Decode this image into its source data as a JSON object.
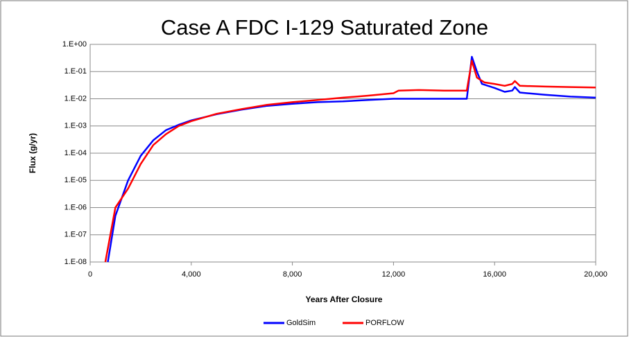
{
  "chart_data": {
    "type": "line",
    "title": "Case A FDC I-129 Saturated Zone",
    "x_label": "Years After Closure",
    "y_label": "Flux (g/yr)",
    "log_y": true,
    "grid": true,
    "legend": "bottom",
    "xlim": [
      0,
      20000
    ],
    "xticks": [
      0,
      {
        "value": 4000,
        "label": "4,000"
      },
      {
        "value": 8000,
        "label": "8,000"
      },
      {
        "value": 12000,
        "label": "12,000"
      },
      {
        "value": 16000,
        "label": "16,000"
      },
      {
        "value": 20000,
        "label": "20,000"
      }
    ],
    "ylim": [
      1e-08,
      1
    ],
    "yticks": [
      {
        "value": 1e-08,
        "label": "1.E-08"
      },
      {
        "value": 1e-07,
        "label": "1.E-07"
      },
      {
        "value": 1e-06,
        "label": "1.E-06"
      },
      {
        "value": 1e-05,
        "label": "1.E-05"
      },
      {
        "value": 0.0001,
        "label": "1.E-04"
      },
      {
        "value": 0.001,
        "label": "1.E-03"
      },
      {
        "value": 0.01,
        "label": "1.E-02"
      },
      {
        "value": 0.1,
        "label": "1.E-01"
      },
      {
        "value": 1,
        "label": "1.E+00"
      }
    ],
    "series": [
      {
        "name": "GoldSim",
        "color": "#0000ff",
        "x": [
          700,
          1000,
          1500,
          2000,
          2500,
          3000,
          3500,
          4000,
          5000,
          6000,
          7000,
          8000,
          9000,
          10000,
          11000,
          12000,
          13000,
          14000,
          14900,
          15100,
          15300,
          15500,
          16000,
          16400,
          16700,
          16800,
          17000,
          18000,
          19000,
          20000
        ],
        "values": [
          1e-08,
          5e-07,
          1e-05,
          8e-05,
          0.0003,
          0.0007,
          0.0011,
          0.0016,
          0.0027,
          0.004,
          0.0055,
          0.0065,
          0.0075,
          0.008,
          0.009,
          0.01,
          0.01,
          0.01,
          0.01,
          0.35,
          0.1,
          0.035,
          0.025,
          0.018,
          0.02,
          0.027,
          0.017,
          0.014,
          0.012,
          0.011
        ]
      },
      {
        "name": "PORFLOW",
        "color": "#ff0000",
        "x": [
          600,
          1000,
          1500,
          2000,
          2500,
          3000,
          3500,
          4000,
          5000,
          6000,
          7000,
          8000,
          9000,
          10000,
          11000,
          12000,
          12200,
          13000,
          14000,
          14900,
          15100,
          15300,
          15600,
          16000,
          16400,
          16700,
          16800,
          17000,
          18000,
          19000,
          20000
        ],
        "values": [
          1e-08,
          1e-06,
          5e-06,
          4e-05,
          0.0002,
          0.0005,
          0.001,
          0.0015,
          0.0028,
          0.0042,
          0.006,
          0.0075,
          0.009,
          0.011,
          0.013,
          0.016,
          0.02,
          0.021,
          0.02,
          0.02,
          0.25,
          0.06,
          0.04,
          0.035,
          0.03,
          0.035,
          0.045,
          0.03,
          0.028,
          0.027,
          0.026
        ]
      }
    ]
  }
}
